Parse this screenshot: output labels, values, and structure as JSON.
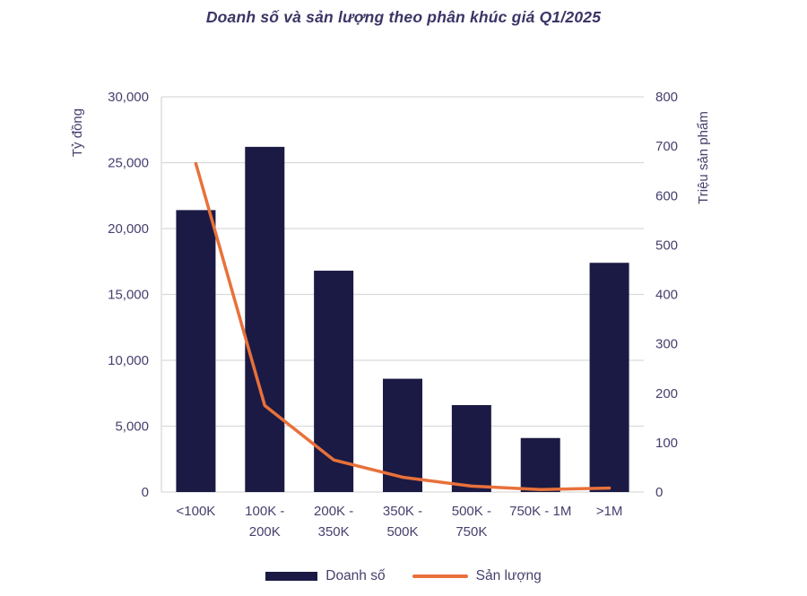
{
  "chart_data": {
    "type": "bar+line combo",
    "title": "Doanh số và sản lượng theo phân khúc giá Q1/2025",
    "categories": [
      "<100K",
      "100K -\n200K",
      "200K -\n350K",
      "350K -\n500K",
      "500K -\n750K",
      "750K - 1M",
      ">1M"
    ],
    "series": [
      {
        "name": "Doanh số",
        "type": "bar",
        "axis": "left",
        "values": [
          21400,
          26200,
          16800,
          8600,
          6600,
          4100,
          17400
        ]
      },
      {
        "name": "Sản lượng",
        "type": "line",
        "axis": "right",
        "values": [
          665,
          175,
          65,
          30,
          12,
          5,
          8
        ]
      }
    ],
    "left_axis": {
      "label": "Tỷ đồng",
      "min": 0,
      "max": 30000,
      "step": 5000
    },
    "right_axis": {
      "label": "Triệu sản phẩm",
      "min": 0,
      "max": 800,
      "step": 100
    },
    "grid": true,
    "legend_position": "bottom",
    "colors": {
      "bar": "#1b1a44",
      "line": "#e8713a",
      "grid": "#d9d9d9",
      "text": "#45406e",
      "title": "#3a3565"
    }
  }
}
